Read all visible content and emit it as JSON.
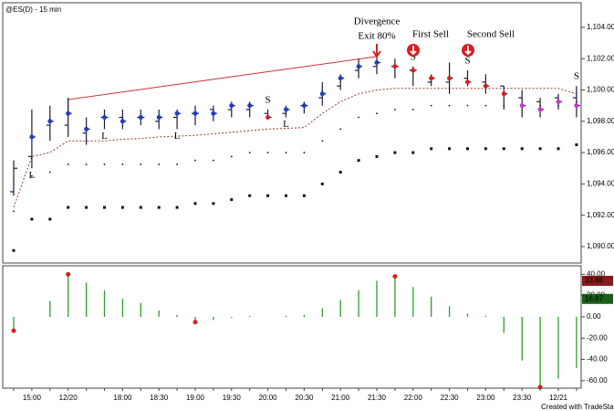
{
  "chart_data": [
    {
      "type": "ohlc",
      "title": "@ES(D) - 15 min",
      "open": [
        1093.5,
        1095.75,
        1097.75,
        1097.75,
        1097.25,
        1098.25,
        1098.25,
        1098.25,
        1098,
        1098.25,
        1098.5,
        1098.75,
        1098.75,
        1098.75,
        1098.5,
        1098.5,
        1099,
        1099.5,
        1100.25,
        1101.25,
        1101.5,
        1101.5,
        1101.25,
        1100.5,
        1100.5,
        1100.75,
        1100.5,
        1100.25,
        1099.5,
        1099.25,
        1099.5,
        1099.5
      ],
      "high": [
        1095.5,
        1098.75,
        1099,
        1099.5,
        1098.25,
        1098.75,
        1098.75,
        1098.75,
        1098.75,
        1098.75,
        1099,
        1099,
        1099.25,
        1099.25,
        1098.75,
        1099,
        1099.25,
        1100.5,
        1101,
        1102,
        1102.25,
        1102,
        1101.5,
        1101,
        1101.75,
        1101.25,
        1101,
        1100.25,
        1100,
        1099.5,
        1099.75,
        1100.25
      ],
      "low": [
        1093.25,
        1095,
        1096.75,
        1097,
        1096.5,
        1097.5,
        1097.5,
        1097.75,
        1097.5,
        1097.5,
        1097.75,
        1098,
        1098.25,
        1098.25,
        1098.25,
        1098.25,
        1098.5,
        1099,
        1100,
        1100.75,
        1101,
        1100.75,
        1100.25,
        1100.25,
        1099.75,
        1100.25,
        1099.75,
        1098.75,
        1098.25,
        1098.25,
        1098.75,
        1098.25
      ],
      "close": [
        1095,
        1097,
        1098,
        1098.5,
        1097.5,
        1098.25,
        1098,
        1098.25,
        1098.25,
        1098.5,
        1098.5,
        1098.5,
        1099,
        1099,
        1098.25,
        1098.75,
        1099,
        1099.75,
        1100.75,
        1101.5,
        1101.75,
        1101.5,
        1101.25,
        1100.75,
        1100.75,
        1100.5,
        1100.25,
        1099.75,
        1099,
        1098.75,
        1099.25,
        1099
      ],
      "signal_colors": [
        null,
        "#1f3fbf",
        "#1f3fbf",
        "#1f3fbf",
        "#1f3fbf",
        "#1f3fbf",
        "#1f3fbf",
        "#1f3fbf",
        "#1f3fbf",
        "#1f3fbf",
        "#1f3fbf",
        "#1f3fbf",
        "#1f3fbf",
        "#1f3fbf",
        "#d42020",
        "#1f3fbf",
        "#1f3fbf",
        "#1f3fbf",
        "#1f3fbf",
        "#1f3fbf",
        "#1f3fbf",
        "#d42020",
        "#d42020",
        "#d42020",
        "#d42020",
        "#d42020",
        "#d42020",
        "#d42020",
        "#cc33cc",
        "#cc33cc",
        "#cc33cc",
        "#cc33cc"
      ],
      "signal_labels": [
        null,
        "L",
        null,
        null,
        null,
        "L",
        null,
        null,
        null,
        "L",
        null,
        null,
        null,
        null,
        "S",
        "L",
        null,
        null,
        null,
        null,
        null,
        null,
        "S",
        null,
        null,
        "S",
        null,
        null,
        null,
        null,
        null,
        "S"
      ],
      "stop": [
        1092.5,
        1095.75,
        1096,
        1096.75,
        1096.75,
        1096.75,
        1096.85,
        1096.9,
        1097,
        1097.05,
        1097.1,
        1097.2,
        1097.3,
        1097.4,
        1097.5,
        1097.55,
        1097.6,
        1098.5,
        1099.25,
        1099.75,
        1100,
        1100.1,
        1100.1,
        1100.1,
        1100.1,
        1100.1,
        1100.1,
        1100.1,
        1100.1,
        1100.1,
        1100.1,
        1099.75
      ],
      "stop_color": "#9a3a2a",
      "band": [
        1092.25,
        1094.5,
        1094.75,
        1095.25,
        1095.25,
        1095.25,
        1095.25,
        1095.25,
        1095.25,
        1095.25,
        1095.5,
        1095.5,
        1095.75,
        1096,
        1096,
        1096,
        1096,
        1096.75,
        1097.5,
        1098.25,
        1098.5,
        1098.75,
        1098.75,
        1099,
        1099,
        1099,
        1099,
        1099,
        1099,
        1099,
        1099,
        1099.25
      ],
      "lower": [
        1089.75,
        1091.75,
        1091.75,
        1092.5,
        1092.5,
        1092.5,
        1092.5,
        1092.5,
        1092.5,
        1092.5,
        1092.75,
        1092.75,
        1093,
        1093.25,
        1093.25,
        1093.25,
        1093.25,
        1094,
        1094.75,
        1095.5,
        1095.75,
        1096,
        1096,
        1096.25,
        1096.25,
        1096.25,
        1096.25,
        1096.25,
        1096.25,
        1096.25,
        1096.25,
        1096.5
      ],
      "color": "#1a1a3a",
      "annotations": [
        "Divergence",
        "Exit 80%",
        "First Sell",
        "Second Sell"
      ],
      "ylim": [
        1088.95,
        1105.45
      ],
      "yticks": [
        {
          "value": 1090,
          "label": "1,090.00"
        },
        {
          "value": 1092,
          "label": "1,092.00"
        },
        {
          "value": 1094,
          "label": "1,094.00"
        },
        {
          "value": 1096,
          "label": "1,096.00"
        },
        {
          "value": 1098,
          "label": "1,098.00"
        },
        {
          "value": 1100,
          "label": "1,100.00"
        },
        {
          "value": 1102,
          "label": "1,102.00"
        },
        {
          "value": 1104,
          "label": "1,104.00"
        }
      ],
      "grid": false
    },
    {
      "type": "bar",
      "categories": [
        null,
        "15:00",
        null,
        "12/20",
        null,
        null,
        "18:00",
        null,
        "18:30",
        null,
        "19:00",
        null,
        "19:30",
        null,
        "20:00",
        null,
        "20:30",
        null,
        "21:00",
        null,
        "21:30",
        null,
        "22:00",
        null,
        "22:30",
        null,
        "23:00",
        null,
        "23:30",
        null,
        "12/21",
        null
      ],
      "values": [
        -13,
        0,
        15,
        40,
        32,
        25,
        17,
        13,
        6,
        2,
        -5,
        -3,
        -1,
        1,
        0,
        1,
        2,
        8,
        16,
        25,
        34,
        38,
        28,
        19,
        10,
        3,
        1,
        -15,
        -41,
        -66,
        -58,
        -48
      ],
      "peaks": [
        true,
        false,
        false,
        true,
        false,
        false,
        false,
        false,
        false,
        false,
        true,
        false,
        false,
        false,
        false,
        false,
        false,
        false,
        false,
        false,
        false,
        true,
        false,
        false,
        false,
        false,
        false,
        false,
        false,
        true,
        false,
        false
      ],
      "color": "#2e9e2e",
      "peak_color": "#d42020",
      "readouts": [
        {
          "value": 33.88,
          "color": "#8b1a1a"
        },
        {
          "value": 16.87,
          "color": "#1a5e1a"
        }
      ],
      "ylim": [
        -67,
        48
      ],
      "yticks": [
        {
          "value": 40,
          "label": "40.00"
        },
        {
          "value": 20,
          "label": "20.00"
        },
        {
          "value": 0,
          "label": "0.00"
        },
        {
          "value": -20,
          "label": "-20.00"
        },
        {
          "value": -40,
          "label": "-40.00"
        },
        {
          "value": -60,
          "label": "-60.00"
        }
      ],
      "footer": "Created with TradeStati"
    }
  ]
}
